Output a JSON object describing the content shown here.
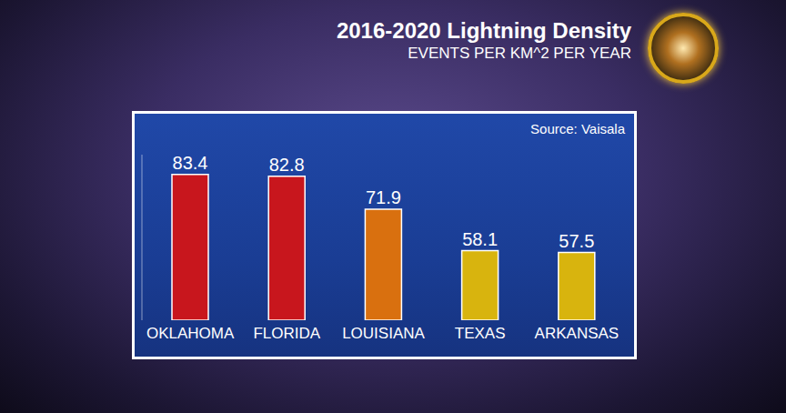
{
  "chart_data": {
    "type": "bar",
    "title": "2016-2020 Lightning Density",
    "subtitle": "EVENTS PER KM^2 PER YEAR",
    "annotations": [
      "Source: Vaisala"
    ],
    "categories": [
      "OKLAHOMA",
      "FLORIDA",
      "LOUISIANA",
      "TEXAS",
      "ARKANSAS"
    ],
    "values": [
      83.4,
      82.8,
      71.9,
      58.1,
      57.5
    ],
    "colors": [
      "#c8161d",
      "#c8161d",
      "#d9700f",
      "#d8b40e",
      "#d8b40e"
    ],
    "ylim": [
      35,
      90
    ],
    "grid": false,
    "data_labels": true,
    "tick_labels": "x"
  }
}
